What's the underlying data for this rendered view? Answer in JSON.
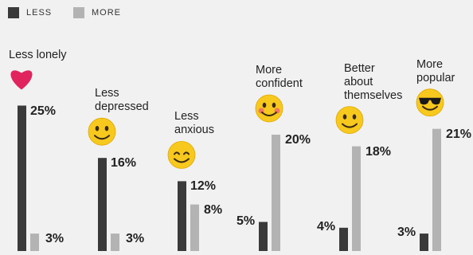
{
  "legend": [
    {
      "label": "LESS",
      "color": "#3a3a3a"
    },
    {
      "label": "MORE",
      "color": "#b3b3b3"
    }
  ],
  "chart_data": {
    "type": "bar",
    "title": "",
    "xlabel": "",
    "ylabel": "",
    "ylim": [
      0,
      25
    ],
    "grid": false,
    "legend_position": "top-left",
    "categories": [
      "Less lonely",
      "Less depressed",
      "Less anxious",
      "More confident",
      "Better about themselves",
      "More popular"
    ],
    "category_lines": [
      [
        "Less lonely"
      ],
      [
        "Less",
        "depressed"
      ],
      [
        "Less",
        "anxious"
      ],
      [
        "More",
        "confident"
      ],
      [
        "Better",
        "about",
        "themselves"
      ],
      [
        "More",
        "popular"
      ]
    ],
    "icons": [
      "heart-icon",
      "smiley-icon",
      "smiling-eyes-icon",
      "blushing-face-icon",
      "smiley-icon",
      "sunglasses-face-icon"
    ],
    "series": [
      {
        "name": "LESS",
        "color": "#3a3a3a",
        "values": [
          25,
          16,
          12,
          5,
          4,
          3
        ]
      },
      {
        "name": "MORE",
        "color": "#b3b3b3",
        "values": [
          3,
          3,
          8,
          20,
          18,
          21
        ]
      }
    ],
    "value_labels": {
      "LESS": [
        "25%",
        "16%",
        "12%",
        "5%",
        "4%",
        "3%"
      ],
      "MORE": [
        "3%",
        "3%",
        "8%",
        "20%",
        "18%",
        "21%"
      ]
    }
  }
}
